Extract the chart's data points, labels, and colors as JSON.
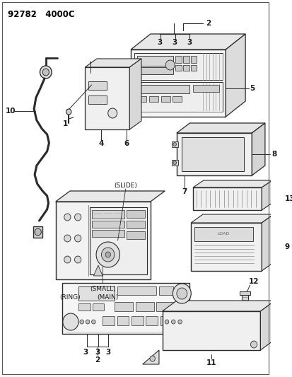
{
  "title": "92782   4000C",
  "background": "#ffffff",
  "lc": "#2a2a2a",
  "fig_width": 4.14,
  "fig_height": 5.33,
  "dpi": 100,
  "xlim": [
    0,
    414
  ],
  "ylim": [
    0,
    533
  ]
}
